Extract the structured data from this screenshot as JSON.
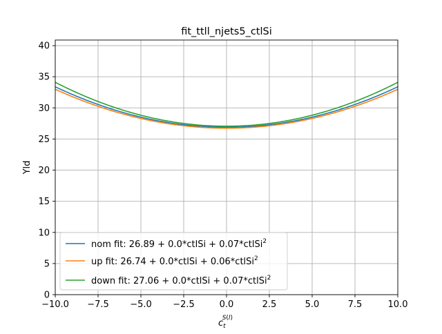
{
  "chart_data": {
    "type": "line",
    "title": "fit_ttll_njets5_ctlSi",
    "xlabel": {
      "base": "c",
      "sub": "t",
      "sup_base": "S",
      "sup_paren_open": "(",
      "sup_sub": "l",
      "sup_paren_close": ")"
    },
    "ylabel": "Yld",
    "xlim": [
      -10.0,
      10.0
    ],
    "ylim": [
      0,
      40.9
    ],
    "xticks": [
      -10.0,
      -7.5,
      -5.0,
      -2.5,
      0.0,
      2.5,
      5.0,
      7.5,
      10.0
    ],
    "xtick_labels": [
      "−10.0",
      "−7.5",
      "−5.0",
      "−2.5",
      "0.0",
      "2.5",
      "5.0",
      "7.5",
      "10.0"
    ],
    "yticks": [
      0,
      5,
      10,
      15,
      20,
      25,
      30,
      35,
      40
    ],
    "ytick_labels": [
      "0",
      "5",
      "10",
      "15",
      "20",
      "25",
      "30",
      "35",
      "40"
    ],
    "grid": true,
    "legend_position": "lower-left",
    "series": [
      {
        "name": "nom fit: 26.89 + 0.0*ctlSi + 0.07*ctlSi",
        "name_sup": "2",
        "color": "#1f77b4",
        "c0": 26.89,
        "c1": 0.0,
        "c2": 0.065
      },
      {
        "name": "up fit: 26.74 + 0.0*ctlSi + 0.06*ctlSi",
        "name_sup": "2",
        "color": "#ff7f0e",
        "c0": 26.74,
        "c1": 0.0,
        "c2": 0.0625
      },
      {
        "name": "down fit: 27.06 + 0.0*ctlSi + 0.07*ctlSi",
        "name_sup": "2",
        "color": "#2ca02c",
        "c0": 27.06,
        "c1": 0.0,
        "c2": 0.0705
      }
    ]
  }
}
